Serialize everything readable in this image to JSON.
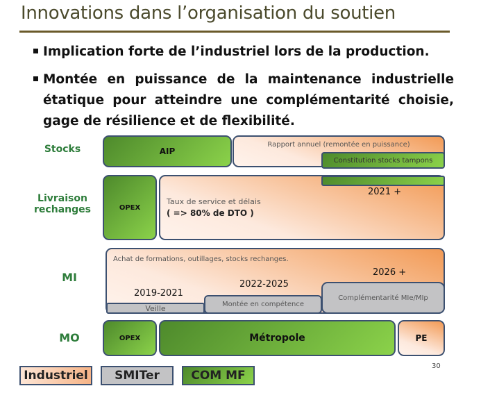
{
  "title": "Innovations dans l’organisation du soutien",
  "bullets": [
    "Implication forte de l’industriel lors de la production.",
    "Montée en puissance de la maintenance industrielle étatique pour atteindre une complémentarité choisie, gage de résilience et de flexibilité."
  ],
  "rows": {
    "stocks": "Stocks",
    "livraison": "Livraison rechanges",
    "mi": "MI",
    "mo": "MO"
  },
  "boxes": {
    "aip": "AIP",
    "rapport": "Rapport annuel  (remontée en puissance)",
    "constitution": "Constitution stocks tampons",
    "opex1": "OPEX",
    "taux": "Taux de service et délais",
    "dto": "( => 80% de DTO )",
    "y2021": "2021 +",
    "achat": "Achat de formations,  outillages, stocks rechanges.",
    "y2026": "2026 +",
    "y2022": "2022-2025",
    "y2019": "2019-2021",
    "veille": "Veille",
    "montee": "Montée en compétence",
    "compl": "Complémentarité MIe/MIp",
    "opex2": "OPEX",
    "metropole": "Métropole",
    "pe": "PE"
  },
  "legend": {
    "industriel": "Industriel",
    "smiter": "SMITer",
    "commf": "COM MF"
  },
  "colors": {
    "industriel": "#f29a55",
    "smiter": "#c3c3c5",
    "commf": "#6aae3a"
  },
  "page_number": "30"
}
